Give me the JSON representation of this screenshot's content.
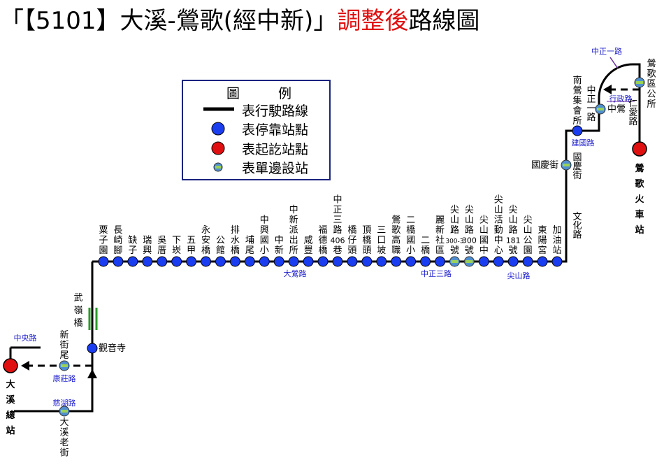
{
  "title": {
    "prefix": "「【5101】大溪-鶯歌(經中新)」",
    "highlight": "調整後",
    "suffix": "路線圖"
  },
  "legend": {
    "heading_left": "圖",
    "heading_right": "例",
    "items": [
      "表行駛路線",
      "表停靠站點",
      "表起訖站點",
      "表單邊設站"
    ]
  },
  "colors": {
    "route": "#000000",
    "stop": "#1a3df0",
    "terminal": "#e01010",
    "oneside_fill": "#4f8fd0",
    "oneside_core": "#9ad15a",
    "label_blue": "#1d1dcc",
    "bridge": "#2a9a2a",
    "title_red": "#e01010"
  },
  "terminals": {
    "left": "大溪總站",
    "right": "鶯歌火車站"
  },
  "main_stops": [
    {
      "label": "粟子園",
      "type": "stop"
    },
    {
      "label": "長崎腳",
      "type": "stop"
    },
    {
      "label": "缺子",
      "type": "stop"
    },
    {
      "label": "瑞興",
      "type": "stop"
    },
    {
      "label": "吳厝",
      "type": "stop"
    },
    {
      "label": "下崁",
      "type": "stop"
    },
    {
      "label": "五甲",
      "type": "stop"
    },
    {
      "label": "永安橋",
      "type": "stop"
    },
    {
      "label": "公館",
      "type": "stop"
    },
    {
      "label": "排水橋",
      "type": "stop"
    },
    {
      "label": "埔尾",
      "type": "stop"
    },
    {
      "label": "中興國小",
      "type": "stop"
    },
    {
      "label": "中新",
      "type": "stop"
    },
    {
      "label": "中新派出所",
      "type": "stop"
    },
    {
      "label": "咸豐",
      "type": "stop"
    },
    {
      "label": "福德橋",
      "type": "stop"
    },
    {
      "label": "中正三路406巷",
      "type": "stop"
    },
    {
      "label": "橋仔頭",
      "type": "stop"
    },
    {
      "label": "頂橋頭",
      "type": "stop"
    },
    {
      "label": "三口坡",
      "type": "stop"
    },
    {
      "label": "鶯歌高職",
      "type": "stop"
    },
    {
      "label": "二橋國小",
      "type": "stop"
    },
    {
      "label": "二橋",
      "type": "stop"
    },
    {
      "label": "麗新社區",
      "type": "stop"
    },
    {
      "label": "尖山路300-3號",
      "type": "oneside"
    },
    {
      "label": "尖山路300號",
      "type": "oneside"
    },
    {
      "label": "尖山國中",
      "type": "stop"
    },
    {
      "label": "尖山活動中心",
      "type": "stop"
    },
    {
      "label": "尖山路181號",
      "type": "stop"
    },
    {
      "label": "尖山公園",
      "type": "stop",
      "red": true
    },
    {
      "label": "東陽宮",
      "type": "stop"
    },
    {
      "label": "加油站",
      "type": "stop"
    }
  ],
  "side_stops": {
    "guanyin": "觀音寺",
    "xinjie": "新街尾",
    "daxi_old": "大溪老街",
    "guoqing": "國慶街",
    "nanying": "南鶯集會所",
    "zhongying": "中鶯",
    "district": "鶯歌區公所"
  },
  "roads": {
    "dayin": "大鶯路",
    "zhongzheng3": "中正三路",
    "jianshan": "尖山路",
    "wenhua": "文化路",
    "guoqing_st": "國慶街",
    "jianguo": "建國路",
    "zhongzheng1_v": "中正一路",
    "zhongzheng1_top": "中正一路",
    "xingzheng": "行政路",
    "renai": "仁愛路",
    "zhongyang": "中央路",
    "kangzhuang": "康莊路",
    "cihu": "慈湖路",
    "bridge": "武嶺橋"
  }
}
